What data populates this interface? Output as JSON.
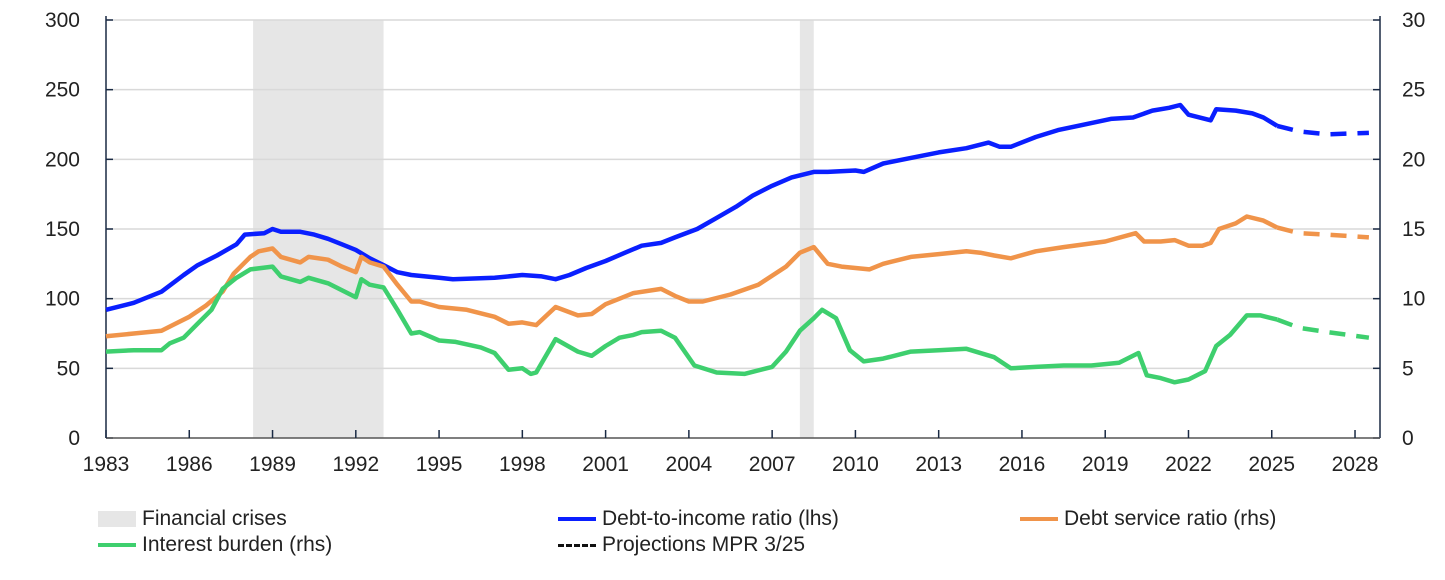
{
  "chart_data": {
    "type": "line",
    "title": "",
    "xlabel": "",
    "ylabel_left": "",
    "ylabel_right": "",
    "xlim": [
      1983,
      2028.9
    ],
    "ylim_left": [
      0,
      300
    ],
    "ylim_right": [
      0,
      30
    ],
    "x_ticks": [
      "1983",
      "1986",
      "1989",
      "1992",
      "1995",
      "1998",
      "2001",
      "2004",
      "2007",
      "2010",
      "2013",
      "2016",
      "2019",
      "2022",
      "2025",
      "2028"
    ],
    "y_ticks_left": [
      "0",
      "50",
      "100",
      "150",
      "200",
      "250",
      "300"
    ],
    "y_ticks_right": [
      "0",
      "5",
      "10",
      "15",
      "20",
      "25",
      "30"
    ],
    "grid": true,
    "legend_position": "bottom",
    "shaded_periods": {
      "name": "Financial crises",
      "color": "#e6e6e6",
      "ranges": [
        [
          1988.3,
          1993.0
        ],
        [
          2008.0,
          2008.5
        ]
      ]
    },
    "series": [
      {
        "name": "Debt-to-income ratio (lhs)",
        "axis": "left",
        "color": "#0a1fff",
        "points": [
          [
            1983,
            92
          ],
          [
            1984,
            97
          ],
          [
            1985,
            105
          ],
          [
            1985.8,
            117
          ],
          [
            1986.3,
            124
          ],
          [
            1987,
            131
          ],
          [
            1987.7,
            139
          ],
          [
            1988,
            146
          ],
          [
            1988.7,
            147
          ],
          [
            1989,
            150
          ],
          [
            1989.3,
            148
          ],
          [
            1990,
            148
          ],
          [
            1990.5,
            146
          ],
          [
            1991,
            143
          ],
          [
            1991.5,
            139
          ],
          [
            1992,
            135
          ],
          [
            1992.5,
            129
          ],
          [
            1993,
            124
          ],
          [
            1993.5,
            119
          ],
          [
            1994,
            117
          ],
          [
            1995,
            115
          ],
          [
            1995.5,
            114
          ],
          [
            1997,
            115
          ],
          [
            1998,
            117
          ],
          [
            1998.7,
            116
          ],
          [
            1999.2,
            114
          ],
          [
            1999.7,
            117
          ],
          [
            2000.3,
            122
          ],
          [
            2001,
            127
          ],
          [
            2001.7,
            133
          ],
          [
            2002.3,
            138
          ],
          [
            2003,
            140
          ],
          [
            2003.5,
            144
          ],
          [
            2004.3,
            150
          ],
          [
            2005,
            158
          ],
          [
            2005.7,
            166
          ],
          [
            2006.3,
            174
          ],
          [
            2007,
            181
          ],
          [
            2007.7,
            187
          ],
          [
            2008.5,
            191
          ],
          [
            2009,
            191
          ],
          [
            2010,
            192
          ],
          [
            2010.3,
            191
          ],
          [
            2011,
            197
          ],
          [
            2012,
            201
          ],
          [
            2013,
            205
          ],
          [
            2014,
            208
          ],
          [
            2014.8,
            212
          ],
          [
            2015.2,
            209
          ],
          [
            2015.6,
            209
          ],
          [
            2016.5,
            216
          ],
          [
            2017.3,
            221
          ],
          [
            2018.5,
            226
          ],
          [
            2019.2,
            229
          ],
          [
            2020,
            230
          ],
          [
            2020.7,
            235
          ],
          [
            2021.3,
            237
          ],
          [
            2021.7,
            239
          ],
          [
            2022,
            232
          ],
          [
            2022.8,
            228
          ],
          [
            2023,
            236
          ],
          [
            2023.7,
            235
          ],
          [
            2024.3,
            233
          ],
          [
            2024.7,
            230
          ],
          [
            2025.2,
            224
          ]
        ],
        "projection": [
          [
            2025.2,
            224
          ],
          [
            2026,
            220
          ],
          [
            2027,
            218
          ],
          [
            2028.5,
            219
          ]
        ]
      },
      {
        "name": "Debt service ratio (rhs)",
        "axis": "right",
        "color": "#f0944a",
        "points": [
          [
            1983,
            7.3
          ],
          [
            1984,
            7.5
          ],
          [
            1985,
            7.7
          ],
          [
            1985.5,
            8.2
          ],
          [
            1986,
            8.7
          ],
          [
            1986.6,
            9.5
          ],
          [
            1987.2,
            10.5
          ],
          [
            1987.6,
            11.8
          ],
          [
            1988.2,
            13.0
          ],
          [
            1988.5,
            13.4
          ],
          [
            1989,
            13.6
          ],
          [
            1989.3,
            13.0
          ],
          [
            1990,
            12.6
          ],
          [
            1990.3,
            13.0
          ],
          [
            1991,
            12.8
          ],
          [
            1991.5,
            12.3
          ],
          [
            1992,
            11.9
          ],
          [
            1992.2,
            13.0
          ],
          [
            1992.5,
            12.6
          ],
          [
            1993,
            12.3
          ],
          [
            1993.5,
            11.0
          ],
          [
            1994,
            9.8
          ],
          [
            1994.3,
            9.8
          ],
          [
            1995,
            9.4
          ],
          [
            1996,
            9.2
          ],
          [
            1997,
            8.7
          ],
          [
            1997.5,
            8.2
          ],
          [
            1998,
            8.3
          ],
          [
            1998.5,
            8.1
          ],
          [
            1999.2,
            9.4
          ],
          [
            2000,
            8.8
          ],
          [
            2000.5,
            8.9
          ],
          [
            2001,
            9.6
          ],
          [
            2001.5,
            10.0
          ],
          [
            2002,
            10.4
          ],
          [
            2003,
            10.7
          ],
          [
            2003.5,
            10.2
          ],
          [
            2004,
            9.8
          ],
          [
            2004.5,
            9.8
          ],
          [
            2005.5,
            10.3
          ],
          [
            2006.5,
            11.0
          ],
          [
            2007.5,
            12.3
          ],
          [
            2008,
            13.3
          ],
          [
            2008.5,
            13.7
          ],
          [
            2009,
            12.5
          ],
          [
            2009.5,
            12.3
          ],
          [
            2010.5,
            12.1
          ],
          [
            2011,
            12.5
          ],
          [
            2012,
            13.0
          ],
          [
            2013,
            13.2
          ],
          [
            2014,
            13.4
          ],
          [
            2014.5,
            13.3
          ],
          [
            2015,
            13.1
          ],
          [
            2015.6,
            12.9
          ],
          [
            2016.5,
            13.4
          ],
          [
            2017.5,
            13.7
          ],
          [
            2019,
            14.1
          ],
          [
            2020.1,
            14.7
          ],
          [
            2020.4,
            14.1
          ],
          [
            2021,
            14.1
          ],
          [
            2021.5,
            14.2
          ],
          [
            2022,
            13.8
          ],
          [
            2022.5,
            13.8
          ],
          [
            2022.8,
            14.0
          ],
          [
            2023.1,
            15.0
          ],
          [
            2023.7,
            15.4
          ],
          [
            2024.1,
            15.9
          ],
          [
            2024.7,
            15.6
          ],
          [
            2025.2,
            15.1
          ]
        ],
        "projection": [
          [
            2025.2,
            15.1
          ],
          [
            2026,
            14.7
          ],
          [
            2027,
            14.6
          ],
          [
            2028.5,
            14.4
          ]
        ]
      },
      {
        "name": "Interest burden (rhs)",
        "axis": "right",
        "color": "#3ecf6e",
        "points": [
          [
            1983,
            6.2
          ],
          [
            1984,
            6.3
          ],
          [
            1985,
            6.3
          ],
          [
            1985.3,
            6.8
          ],
          [
            1985.8,
            7.2
          ],
          [
            1986.3,
            8.2
          ],
          [
            1986.8,
            9.2
          ],
          [
            1987.2,
            10.7
          ],
          [
            1987.7,
            11.5
          ],
          [
            1988.2,
            12.1
          ],
          [
            1989,
            12.3
          ],
          [
            1989.3,
            11.6
          ],
          [
            1990,
            11.2
          ],
          [
            1990.3,
            11.5
          ],
          [
            1991,
            11.1
          ],
          [
            1991.5,
            10.6
          ],
          [
            1992,
            10.1
          ],
          [
            1992.2,
            11.4
          ],
          [
            1992.5,
            11.0
          ],
          [
            1993,
            10.8
          ],
          [
            1993.5,
            9.2
          ],
          [
            1994,
            7.5
          ],
          [
            1994.3,
            7.6
          ],
          [
            1995,
            7.0
          ],
          [
            1995.6,
            6.9
          ],
          [
            1996.5,
            6.5
          ],
          [
            1997,
            6.1
          ],
          [
            1997.5,
            4.9
          ],
          [
            1998,
            5.0
          ],
          [
            1998.3,
            4.6
          ],
          [
            1998.5,
            4.7
          ],
          [
            1999.2,
            7.1
          ],
          [
            2000,
            6.2
          ],
          [
            2000.5,
            5.9
          ],
          [
            2001,
            6.6
          ],
          [
            2001.5,
            7.2
          ],
          [
            2002,
            7.4
          ],
          [
            2002.3,
            7.6
          ],
          [
            2003,
            7.7
          ],
          [
            2003.5,
            7.2
          ],
          [
            2004.2,
            5.2
          ],
          [
            2005,
            4.7
          ],
          [
            2006,
            4.6
          ],
          [
            2007,
            5.1
          ],
          [
            2007.5,
            6.2
          ],
          [
            2008,
            7.7
          ],
          [
            2008.5,
            8.6
          ],
          [
            2008.8,
            9.2
          ],
          [
            2009.3,
            8.6
          ],
          [
            2009.8,
            6.3
          ],
          [
            2010.3,
            5.5
          ],
          [
            2011,
            5.7
          ],
          [
            2012,
            6.2
          ],
          [
            2013,
            6.3
          ],
          [
            2014,
            6.4
          ],
          [
            2015,
            5.8
          ],
          [
            2015.6,
            5.0
          ],
          [
            2016.5,
            5.1
          ],
          [
            2017.5,
            5.2
          ],
          [
            2018.5,
            5.2
          ],
          [
            2019.5,
            5.4
          ],
          [
            2020.2,
            6.1
          ],
          [
            2020.5,
            4.5
          ],
          [
            2021,
            4.3
          ],
          [
            2021.5,
            4.0
          ],
          [
            2022,
            4.2
          ],
          [
            2022.6,
            4.8
          ],
          [
            2023,
            6.6
          ],
          [
            2023.5,
            7.4
          ],
          [
            2024.1,
            8.8
          ],
          [
            2024.6,
            8.8
          ],
          [
            2025.2,
            8.5
          ]
        ],
        "projection": [
          [
            2025.2,
            8.5
          ],
          [
            2026,
            7.9
          ],
          [
            2027,
            7.6
          ],
          [
            2028.5,
            7.2
          ]
        ]
      }
    ]
  },
  "legend": {
    "crises": "Financial crises",
    "dti": "Debt-to-income ratio (lhs)",
    "dsr": "Debt service ratio (rhs)",
    "ib": "Interest burden (rhs)",
    "proj": "Projections MPR 3/25"
  }
}
